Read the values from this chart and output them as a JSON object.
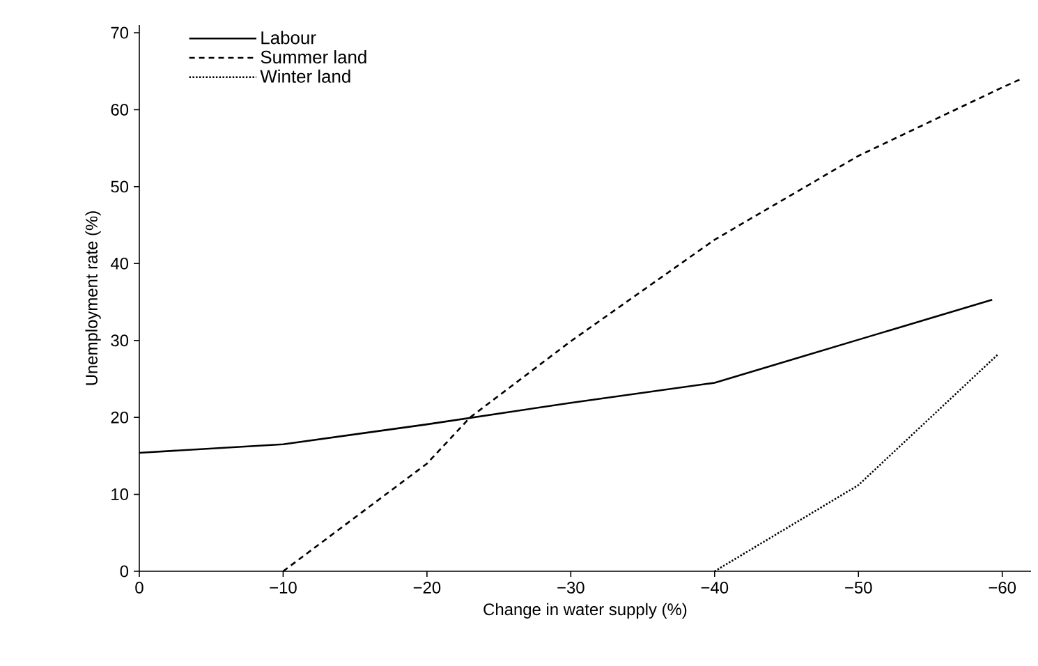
{
  "chart_data": {
    "type": "line",
    "xlabel": "Change in water supply (%)",
    "ylabel": "Unemployment rate (%)",
    "xlim": [
      0,
      -62
    ],
    "ylim": [
      0,
      71
    ],
    "xticks": [
      0,
      {
        "value": -10,
        "label": "−10"
      },
      {
        "value": -20,
        "label": "−20"
      },
      {
        "value": -30,
        "label": "−30"
      },
      {
        "value": -40,
        "label": "−40"
      },
      {
        "value": -50,
        "label": "−50"
      },
      {
        "value": -60,
        "label": "−60"
      }
    ],
    "yticks": [
      0,
      10,
      20,
      30,
      40,
      50,
      60,
      70
    ],
    "legend": "top left",
    "series": [
      {
        "name": "Labour",
        "color": "#000000",
        "line_style": "solid",
        "x": [
          0,
          -10,
          -20,
          -30,
          -40,
          -50,
          -59.3
        ],
        "values": [
          15.4,
          16.5,
          19.1,
          21.9,
          24.5,
          30.1,
          35.3
        ]
      },
      {
        "name": "Summer land",
        "color": "#000000",
        "line_style": "dashed",
        "x": [
          -10,
          -20,
          -23,
          -30,
          -40,
          -50,
          -60,
          -61.2
        ],
        "values": [
          0,
          14,
          20,
          29.9,
          43.1,
          54,
          62.9,
          63.9
        ]
      },
      {
        "name": "Winter land",
        "color": "#000000",
        "line_style": "dotted",
        "x": [
          -40,
          -50,
          -59.7
        ],
        "values": [
          0,
          11.2,
          28.2
        ]
      }
    ]
  }
}
